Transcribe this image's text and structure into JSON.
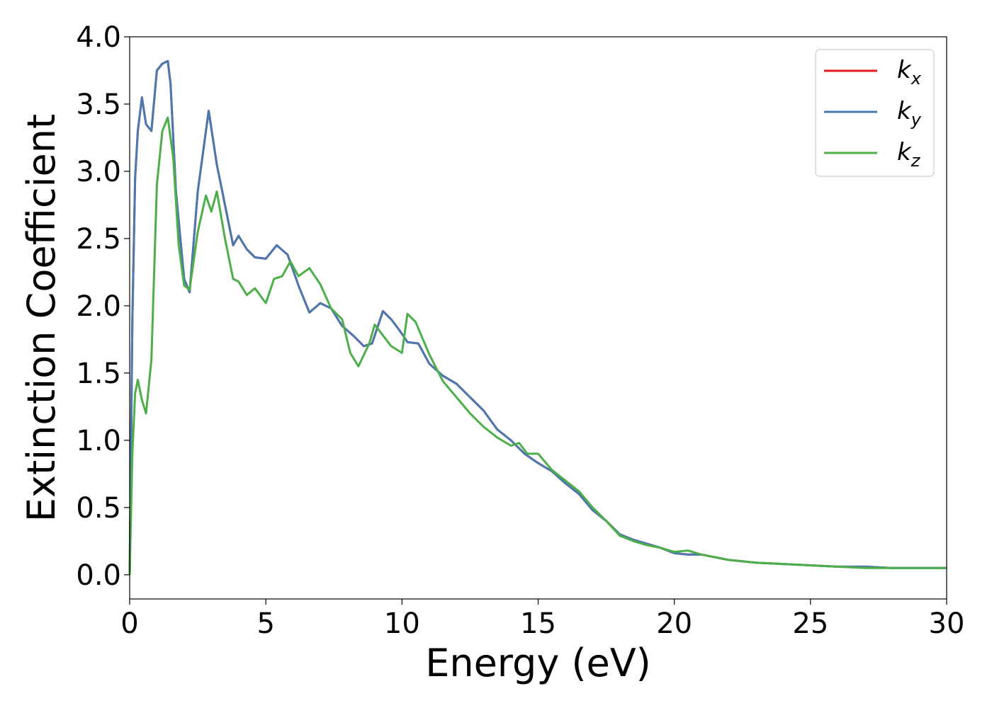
{
  "chart_data": {
    "type": "line",
    "xlabel": "Energy (eV)",
    "ylabel": "Extinction Coefficient",
    "xlim": [
      0,
      30
    ],
    "ylim": [
      -0.18,
      4.0
    ],
    "xticks": [
      "0",
      "5",
      "10",
      "15",
      "20",
      "25",
      "30"
    ],
    "yticks": [
      "0.0",
      "0.5",
      "1.0",
      "1.5",
      "2.0",
      "2.5",
      "3.0",
      "3.5",
      "4.0"
    ],
    "grid": false,
    "legend_position": "top-right",
    "series": [
      {
        "name": "k_x",
        "label_main": "k",
        "label_sub": "x",
        "color": "#e41a1c",
        "x": [
          0,
          0.1,
          0.2,
          0.3,
          0.45,
          0.6,
          0.8,
          1.0,
          1.2,
          1.4,
          1.5,
          1.7,
          2.0,
          2.2,
          2.5,
          2.9,
          3.2,
          3.5,
          3.8,
          4.0,
          4.3,
          4.6,
          5.0,
          5.4,
          5.8,
          6.2,
          6.6,
          7.0,
          7.4,
          7.8,
          8.2,
          8.6,
          8.9,
          9.3,
          9.6,
          9.9,
          10.2,
          10.6,
          11.0,
          11.5,
          12.0,
          12.5,
          13.0,
          13.5,
          14.0,
          14.5,
          15.0,
          15.5,
          16.0,
          16.5,
          17.0,
          17.5,
          18.0,
          18.5,
          19.0,
          19.5,
          20.0,
          20.5,
          21.0,
          22.0,
          23.0,
          24.0,
          25.0,
          26.0,
          27.0,
          28.0,
          29.0,
          30.0
        ],
        "values": [
          0.0,
          1.9,
          2.95,
          3.3,
          3.55,
          3.35,
          3.3,
          3.75,
          3.8,
          3.82,
          3.65,
          2.85,
          2.2,
          2.1,
          2.85,
          3.45,
          3.05,
          2.75,
          2.45,
          2.52,
          2.42,
          2.36,
          2.35,
          2.45,
          2.38,
          2.15,
          1.95,
          2.02,
          1.98,
          1.85,
          1.78,
          1.7,
          1.72,
          1.96,
          1.9,
          1.82,
          1.73,
          1.72,
          1.57,
          1.48,
          1.42,
          1.32,
          1.22,
          1.08,
          1.0,
          0.9,
          0.83,
          0.77,
          0.68,
          0.6,
          0.48,
          0.4,
          0.3,
          0.26,
          0.23,
          0.2,
          0.16,
          0.15,
          0.15,
          0.11,
          0.09,
          0.08,
          0.07,
          0.06,
          0.06,
          0.05,
          0.05,
          0.05
        ]
      },
      {
        "name": "k_y",
        "label_main": "k",
        "label_sub": "y",
        "color": "#4a78b0",
        "x": [
          0,
          0.1,
          0.2,
          0.3,
          0.45,
          0.6,
          0.8,
          1.0,
          1.2,
          1.4,
          1.5,
          1.7,
          2.0,
          2.2,
          2.5,
          2.9,
          3.2,
          3.5,
          3.8,
          4.0,
          4.3,
          4.6,
          5.0,
          5.4,
          5.8,
          6.2,
          6.6,
          7.0,
          7.4,
          7.8,
          8.2,
          8.6,
          8.9,
          9.3,
          9.6,
          9.9,
          10.2,
          10.6,
          11.0,
          11.5,
          12.0,
          12.5,
          13.0,
          13.5,
          14.0,
          14.5,
          15.0,
          15.5,
          16.0,
          16.5,
          17.0,
          17.5,
          18.0,
          18.5,
          19.0,
          19.5,
          20.0,
          20.5,
          21.0,
          22.0,
          23.0,
          24.0,
          25.0,
          26.0,
          27.0,
          28.0,
          29.0,
          30.0
        ],
        "values": [
          0.0,
          1.9,
          2.95,
          3.3,
          3.55,
          3.35,
          3.3,
          3.75,
          3.8,
          3.82,
          3.65,
          2.85,
          2.2,
          2.1,
          2.85,
          3.45,
          3.05,
          2.75,
          2.45,
          2.52,
          2.42,
          2.36,
          2.35,
          2.45,
          2.38,
          2.15,
          1.95,
          2.02,
          1.98,
          1.85,
          1.78,
          1.7,
          1.72,
          1.96,
          1.9,
          1.82,
          1.73,
          1.72,
          1.57,
          1.48,
          1.42,
          1.32,
          1.22,
          1.08,
          1.0,
          0.9,
          0.83,
          0.77,
          0.68,
          0.6,
          0.48,
          0.4,
          0.3,
          0.26,
          0.23,
          0.2,
          0.16,
          0.15,
          0.15,
          0.11,
          0.09,
          0.08,
          0.07,
          0.06,
          0.06,
          0.05,
          0.05,
          0.05
        ]
      },
      {
        "name": "k_z",
        "label_main": "k",
        "label_sub": "z",
        "color": "#4daf4a",
        "x": [
          0,
          0.1,
          0.2,
          0.3,
          0.45,
          0.6,
          0.8,
          1.0,
          1.2,
          1.4,
          1.6,
          1.8,
          2.0,
          2.2,
          2.5,
          2.8,
          3.0,
          3.2,
          3.5,
          3.8,
          4.0,
          4.3,
          4.6,
          5.0,
          5.3,
          5.6,
          5.9,
          6.2,
          6.6,
          7.0,
          7.4,
          7.8,
          8.1,
          8.4,
          8.8,
          9.0,
          9.3,
          9.6,
          10.0,
          10.2,
          10.5,
          11.0,
          11.5,
          12.0,
          12.5,
          13.0,
          13.5,
          14.0,
          14.3,
          14.6,
          15.0,
          15.5,
          16.0,
          16.5,
          17.0,
          17.5,
          18.0,
          18.5,
          19.0,
          19.5,
          20.0,
          20.5,
          21.0,
          22.0,
          23.0,
          24.0,
          25.0,
          26.0,
          27.0,
          28.0,
          29.0,
          30.0
        ],
        "values": [
          0.0,
          0.9,
          1.35,
          1.45,
          1.3,
          1.2,
          1.6,
          2.9,
          3.3,
          3.4,
          3.1,
          2.45,
          2.15,
          2.12,
          2.55,
          2.82,
          2.7,
          2.85,
          2.5,
          2.2,
          2.18,
          2.08,
          2.13,
          2.02,
          2.2,
          2.22,
          2.33,
          2.22,
          2.28,
          2.16,
          1.98,
          1.9,
          1.65,
          1.55,
          1.72,
          1.86,
          1.78,
          1.7,
          1.65,
          1.94,
          1.88,
          1.64,
          1.44,
          1.32,
          1.2,
          1.1,
          1.02,
          0.96,
          0.98,
          0.9,
          0.9,
          0.78,
          0.7,
          0.62,
          0.5,
          0.4,
          0.29,
          0.25,
          0.22,
          0.2,
          0.17,
          0.18,
          0.15,
          0.11,
          0.09,
          0.08,
          0.07,
          0.06,
          0.05,
          0.05,
          0.05,
          0.05
        ]
      }
    ]
  }
}
